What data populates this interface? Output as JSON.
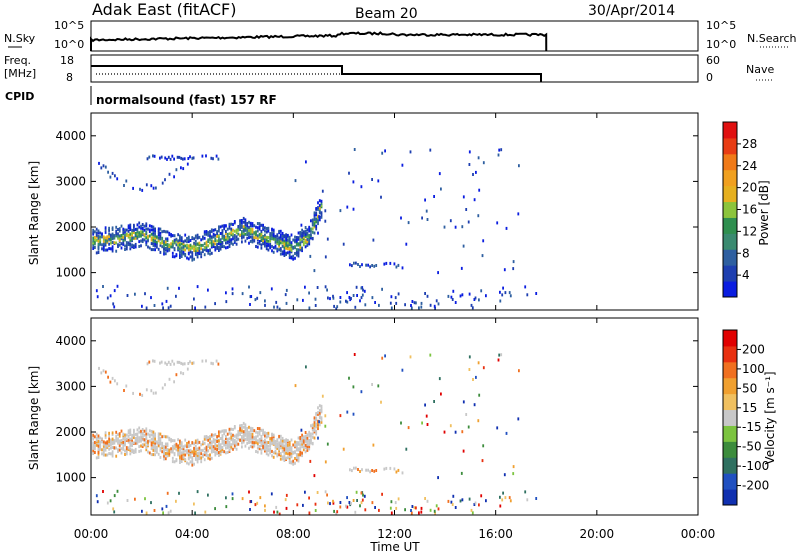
{
  "header": {
    "site": "Adak East (fitACF)",
    "beam": "Beam 20",
    "date": "30/Apr/2014"
  },
  "panels": {
    "nsky": {
      "left_label": "N.Sky",
      "right_label": "N.Search",
      "ticks": [
        "10^5",
        "10^0"
      ]
    },
    "freq": {
      "left_label_top": "Freq.",
      "left_label_unit": "[MHz]",
      "left_ticks": [
        "18",
        "8"
      ],
      "right_label": "Nave",
      "right_ticks": [
        "60",
        "0"
      ]
    },
    "cpid": {
      "label": "CPID",
      "text": "normalsound (fast) 157 RF"
    }
  },
  "colorbars": {
    "power": {
      "label": "Power [dB]",
      "ticks": [
        "28",
        "24",
        "20",
        "16",
        "12",
        "8",
        "4"
      ],
      "colors": [
        "#0a1de0",
        "#1e3fb0",
        "#2e5fa0",
        "#3a8a70",
        "#2f8f4f",
        "#8cc43c",
        "#e6b020",
        "#f0a020",
        "#f07a18",
        "#e83c14",
        "#e01010"
      ]
    },
    "velocity": {
      "label": "Velocity [m s⁻¹]",
      "ticks": [
        "200",
        "100",
        "50",
        "15",
        "-15",
        "-50",
        "-100",
        "-200"
      ],
      "colors": [
        "#1030b0",
        "#2050c0",
        "#2f7060",
        "#3c8c3c",
        "#7cc440",
        "#c8c8c8",
        "#f0c060",
        "#f0a030",
        "#f07020",
        "#e83010",
        "#e00000"
      ]
    }
  },
  "chart_data": [
    {
      "type": "heatmap",
      "title": "Power",
      "ylabel": "Slant Range [km]",
      "xlabel": "Time UT",
      "ylim": [
        180,
        4500
      ],
      "yticks": [
        "4000",
        "3000",
        "2000",
        "1000"
      ],
      "xticks": [
        "00:00",
        "04:00",
        "08:00",
        "12:00",
        "16:00",
        "20:00",
        "00:00"
      ],
      "xlim_hours": [
        0,
        24
      ],
      "echo_band_center_km": [
        [
          0,
          1700
        ],
        [
          1,
          1750
        ],
        [
          2,
          1850
        ],
        [
          3,
          1650
        ],
        [
          4,
          1550
        ],
        [
          5,
          1750
        ],
        [
          6,
          1950
        ],
        [
          7,
          1750
        ],
        [
          8,
          1550
        ],
        [
          8.6,
          1800
        ],
        [
          9.1,
          2500
        ]
      ]
    },
    {
      "type": "heatmap",
      "title": "Velocity",
      "ylabel": "Slant Range [km]",
      "xlabel": "Time UT",
      "ylim": [
        180,
        4500
      ],
      "yticks": [
        "4000",
        "3000",
        "2000",
        "1000"
      ],
      "xticks": [
        "00:00",
        "04:00",
        "08:00",
        "12:00",
        "16:00",
        "20:00",
        "00:00"
      ],
      "xlim_hours": [
        0,
        24
      ]
    }
  ],
  "axis": {
    "xlabel": "Time UT"
  }
}
